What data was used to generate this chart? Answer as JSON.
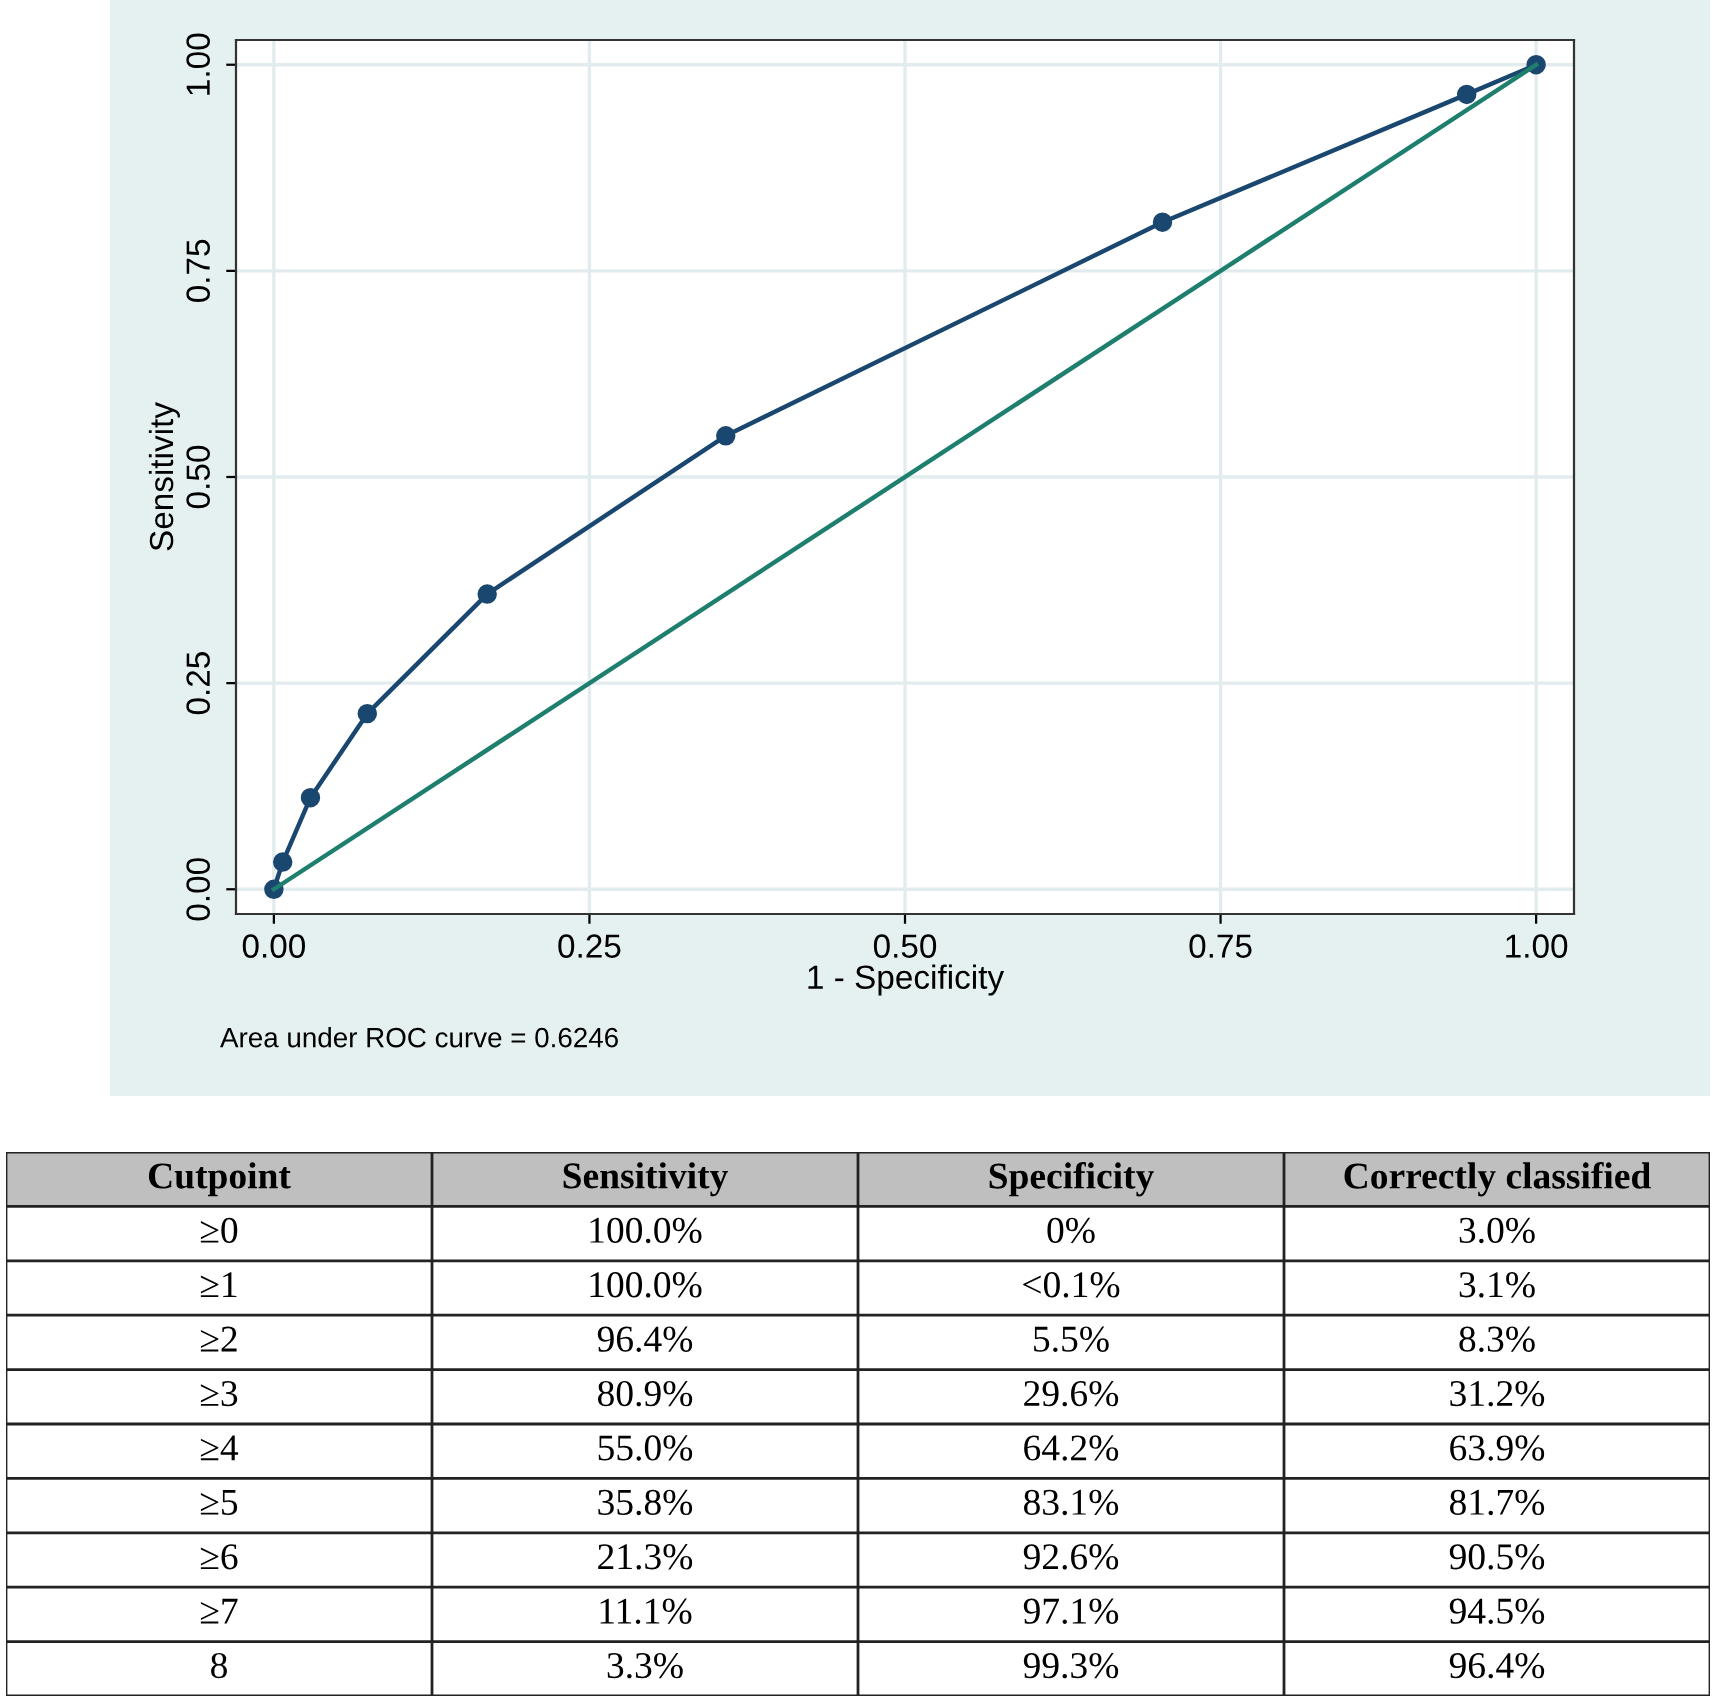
{
  "chart_data": [
    {
      "type": "line",
      "xlabel": "1 - Specificity",
      "ylabel": "Sensitivity",
      "series": [
        {
          "x": [
            0,
            0.007,
            0.029,
            0.074,
            0.169,
            0.358,
            0.704,
            0.945,
            1.0
          ],
          "values": [
            0,
            0.033,
            0.111,
            0.213,
            0.358,
            0.55,
            0.809,
            0.964,
            1.0
          ],
          "color": "#1a476f",
          "marker": "circle"
        },
        {
          "x": [
            0,
            1
          ],
          "values": [
            0,
            1
          ],
          "color": "#1f7f6e",
          "marker": "none"
        }
      ],
      "xlim": [
        -0.03,
        1.03
      ],
      "ylim": [
        -0.03,
        1.03
      ],
      "xticks": [
        {
          "value": 0,
          "label": "0.00"
        },
        0.25,
        {
          "value": 0.5,
          "label": "0.50"
        },
        0.75,
        {
          "value": 1,
          "label": "1.00"
        }
      ],
      "yticks": [
        {
          "value": 0,
          "label": "0.00"
        },
        0.25,
        {
          "value": 0.5,
          "label": "0.50"
        },
        0.75,
        {
          "value": 1,
          "label": "1.00"
        }
      ],
      "grid": true,
      "annotations": [
        "Area under ROC curve = 0.6246"
      ]
    },
    {
      "type": "other",
      "categories": [
        "Cutpoint",
        "Sensitivity",
        "Specificity",
        "Correctly classified"
      ],
      "cell_labels": [
        [
          "≥0",
          "100.0%",
          "0%",
          "3.0%"
        ],
        [
          "≥1",
          "100.0%",
          "<0.1%",
          "3.1%"
        ],
        [
          "≥2",
          "96.4%",
          "5.5%",
          "8.3%"
        ],
        [
          "≥3",
          "80.9%",
          "29.6%",
          "31.2%"
        ],
        [
          "≥4",
          "55.0%",
          "64.2%",
          "63.9%"
        ],
        [
          "≥5",
          "35.8%",
          "83.1%",
          "81.7%"
        ],
        [
          "≥6",
          "21.3%",
          "92.6%",
          "90.5%"
        ],
        [
          "≥7",
          "11.1%",
          "97.1%",
          "94.5%"
        ],
        [
          "8",
          "3.3%",
          "99.3%",
          "96.4%"
        ]
      ]
    }
  ]
}
